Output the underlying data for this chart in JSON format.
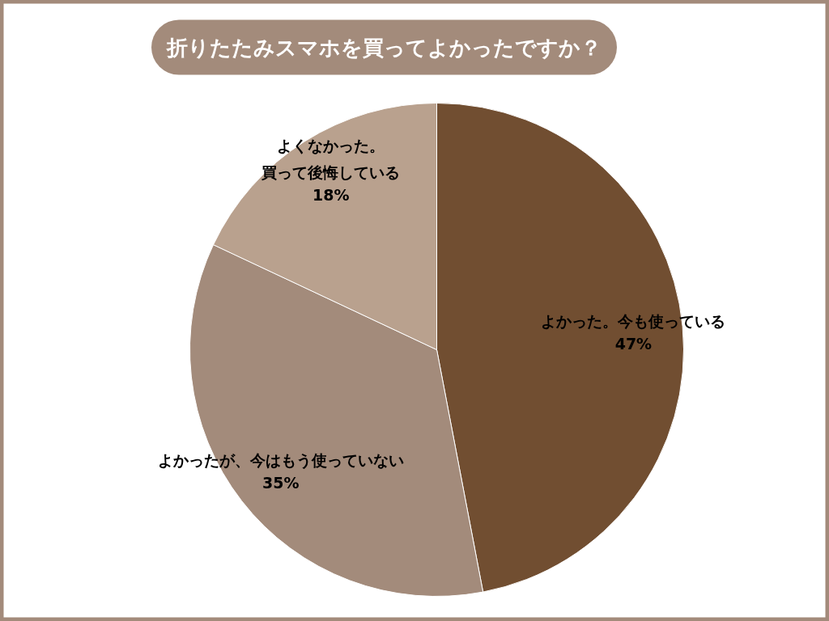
{
  "chart_data": {
    "type": "pie",
    "title": "折りたたみスマホを買ってよかったですか？",
    "categories": [
      "よかった。今も使っている",
      "よかったが、今はもう使っていない",
      "よくなかった。買って後悔している"
    ],
    "values": [
      47,
      35,
      18
    ],
    "value_labels": [
      "47%",
      "35%",
      "18%"
    ],
    "colors": [
      "#714e31",
      "#a38b7b",
      "#b9a18e"
    ]
  }
}
